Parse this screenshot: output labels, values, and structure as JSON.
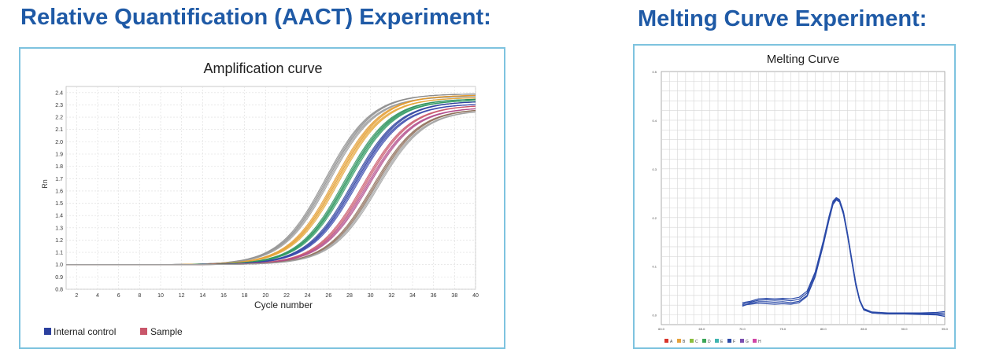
{
  "headings": {
    "left": "Relative Quantification (AACT) Experiment:",
    "right": "Melting Curve Experiment:"
  },
  "chart_data": [
    {
      "type": "line",
      "title": "Amplification curve",
      "xlabel": "Cycle number",
      "ylabel": "Rn",
      "xlim": [
        1,
        40
      ],
      "ylim": [
        0.8,
        2.45
      ],
      "x_ticks": [
        2,
        4,
        6,
        8,
        10,
        12,
        14,
        16,
        18,
        20,
        22,
        24,
        26,
        28,
        30,
        32,
        34,
        36,
        38,
        40
      ],
      "y_ticks": [
        0.8,
        0.9,
        1.0,
        1.1,
        1.2,
        1.3,
        1.4,
        1.5,
        1.6,
        1.7,
        1.8,
        1.9,
        2.0,
        2.1,
        2.2,
        2.3,
        2.4
      ],
      "grid": true,
      "legend_position": "bottom-left",
      "legend": [
        {
          "label": "Internal control",
          "color": "#2b3f9e"
        },
        {
          "label": "Sample",
          "color": "#c9566a"
        }
      ],
      "curve_model": "sigmoid: 1.0 + (top - 1.0) / (1 + exp(-(x - midpoint) / slope))",
      "series": [
        {
          "color": "#8a8a8a",
          "midpoint": 25.8,
          "top": 2.39,
          "slope": 2.2
        },
        {
          "color": "#9a9a9a",
          "midpoint": 26.0,
          "top": 2.37,
          "slope": 2.2
        },
        {
          "color": "#e39a2b",
          "midpoint": 26.7,
          "top": 2.38,
          "slope": 2.2
        },
        {
          "color": "#e5a63a",
          "midpoint": 26.9,
          "top": 2.36,
          "slope": 2.2
        },
        {
          "color": "#2a8f5b",
          "midpoint": 27.6,
          "top": 2.35,
          "slope": 2.2
        },
        {
          "color": "#2f9a62",
          "midpoint": 27.8,
          "top": 2.34,
          "slope": 2.2
        },
        {
          "color": "#2b3f9e",
          "midpoint": 28.4,
          "top": 2.33,
          "slope": 2.2
        },
        {
          "color": "#3849ad",
          "midpoint": 28.6,
          "top": 2.31,
          "slope": 2.2
        },
        {
          "color": "#c9566a",
          "midpoint": 29.4,
          "top": 2.3,
          "slope": 2.2
        },
        {
          "color": "#b04a8a",
          "midpoint": 29.7,
          "top": 2.28,
          "slope": 2.2
        },
        {
          "color": "#8b6a55",
          "midpoint": 30.3,
          "top": 2.27,
          "slope": 2.2
        },
        {
          "color": "#a0a0a0",
          "midpoint": 30.6,
          "top": 2.26,
          "slope": 2.2
        }
      ]
    },
    {
      "type": "line",
      "title": "Melting Curve",
      "xlim": [
        60.0,
        95.0
      ],
      "ylim": [
        -0.02,
        0.5
      ],
      "x_ticks": [
        "60.0",
        "65.0",
        "70.0",
        "75.0",
        "80.0",
        "85.0",
        "90.0",
        "95.0"
      ],
      "y_ticks": [
        "0.0",
        "0.1",
        "0.2",
        "0.3",
        "0.4",
        "0.5"
      ],
      "grid": true,
      "legend_position": "bottom-left",
      "legend": [
        {
          "label": "A",
          "color": "#d9342b"
        },
        {
          "label": "B",
          "color": "#e6a23c"
        },
        {
          "label": "C",
          "color": "#8bbf3f"
        },
        {
          "label": "D",
          "color": "#3aa657"
        },
        {
          "label": "E",
          "color": "#3fb5b0"
        },
        {
          "label": "F",
          "color": "#2b4aa8"
        },
        {
          "label": "G",
          "color": "#7b4fb0"
        },
        {
          "label": "H",
          "color": "#d145a6"
        }
      ],
      "series_color": "#2b4aa8",
      "series": [
        {
          "points": [
            [
              70.0,
              0.022
            ],
            [
              71.0,
              0.026
            ],
            [
              72.0,
              0.03
            ],
            [
              73.0,
              0.031
            ],
            [
              74.0,
              0.03
            ],
            [
              75.0,
              0.031
            ],
            [
              76.0,
              0.029
            ],
            [
              77.0,
              0.032
            ],
            [
              78.0,
              0.045
            ],
            [
              79.0,
              0.085
            ],
            [
              80.0,
              0.15
            ],
            [
              80.7,
              0.2
            ],
            [
              81.2,
              0.232
            ],
            [
              81.6,
              0.24
            ],
            [
              82.0,
              0.236
            ],
            [
              82.5,
              0.21
            ],
            [
              83.0,
              0.165
            ],
            [
              83.5,
              0.115
            ],
            [
              84.0,
              0.065
            ],
            [
              84.5,
              0.03
            ],
            [
              85.0,
              0.012
            ],
            [
              86.0,
              0.005
            ],
            [
              88.0,
              0.003
            ],
            [
              90.0,
              0.003
            ],
            [
              92.0,
              0.002
            ],
            [
              94.0,
              0.003
            ],
            [
              95.0,
              0.004
            ]
          ]
        },
        {
          "points": [
            [
              70.0,
              0.018
            ],
            [
              71.0,
              0.024
            ],
            [
              72.0,
              0.027
            ],
            [
              73.0,
              0.027
            ],
            [
              74.0,
              0.026
            ],
            [
              75.0,
              0.027
            ],
            [
              76.0,
              0.025
            ],
            [
              77.0,
              0.028
            ],
            [
              78.0,
              0.04
            ],
            [
              79.0,
              0.08
            ],
            [
              80.0,
              0.145
            ],
            [
              80.7,
              0.196
            ],
            [
              81.2,
              0.229
            ],
            [
              81.6,
              0.238
            ],
            [
              82.0,
              0.234
            ],
            [
              82.5,
              0.208
            ],
            [
              83.0,
              0.163
            ],
            [
              83.5,
              0.113
            ],
            [
              84.0,
              0.063
            ],
            [
              84.5,
              0.029
            ],
            [
              85.0,
              0.011
            ],
            [
              86.0,
              0.004
            ],
            [
              88.0,
              0.002
            ],
            [
              90.0,
              0.002
            ],
            [
              92.0,
              0.003
            ],
            [
              94.0,
              0.001
            ],
            [
              95.0,
              0.0
            ]
          ]
        },
        {
          "points": [
            [
              70.0,
              0.025
            ],
            [
              71.0,
              0.028
            ],
            [
              72.0,
              0.033
            ],
            [
              73.0,
              0.034
            ],
            [
              74.0,
              0.033
            ],
            [
              75.0,
              0.034
            ],
            [
              76.0,
              0.033
            ],
            [
              77.0,
              0.036
            ],
            [
              78.0,
              0.049
            ],
            [
              79.0,
              0.088
            ],
            [
              80.0,
              0.152
            ],
            [
              80.7,
              0.202
            ],
            [
              81.2,
              0.234
            ],
            [
              81.6,
              0.241
            ],
            [
              82.0,
              0.237
            ],
            [
              82.5,
              0.212
            ],
            [
              83.0,
              0.167
            ],
            [
              83.5,
              0.117
            ],
            [
              84.0,
              0.067
            ],
            [
              84.5,
              0.031
            ],
            [
              85.0,
              0.013
            ],
            [
              86.0,
              0.006
            ],
            [
              88.0,
              0.004
            ],
            [
              90.0,
              0.004
            ],
            [
              92.0,
              0.004
            ],
            [
              94.0,
              0.005
            ],
            [
              95.0,
              0.007
            ]
          ]
        },
        {
          "points": [
            [
              70.0,
              0.02
            ],
            [
              71.0,
              0.022
            ],
            [
              72.0,
              0.024
            ],
            [
              73.0,
              0.023
            ],
            [
              74.0,
              0.022
            ],
            [
              75.0,
              0.023
            ],
            [
              76.0,
              0.022
            ],
            [
              77.0,
              0.025
            ],
            [
              78.0,
              0.038
            ],
            [
              79.0,
              0.078
            ],
            [
              80.0,
              0.143
            ],
            [
              80.7,
              0.194
            ],
            [
              81.2,
              0.227
            ],
            [
              81.6,
              0.236
            ],
            [
              82.0,
              0.232
            ],
            [
              82.5,
              0.206
            ],
            [
              83.0,
              0.161
            ],
            [
              83.5,
              0.111
            ],
            [
              84.0,
              0.061
            ],
            [
              84.5,
              0.028
            ],
            [
              85.0,
              0.01
            ],
            [
              86.0,
              0.004
            ],
            [
              88.0,
              0.002
            ],
            [
              90.0,
              0.002
            ],
            [
              92.0,
              0.001
            ],
            [
              94.0,
              0.0
            ],
            [
              95.0,
              -0.003
            ]
          ]
        }
      ]
    }
  ]
}
